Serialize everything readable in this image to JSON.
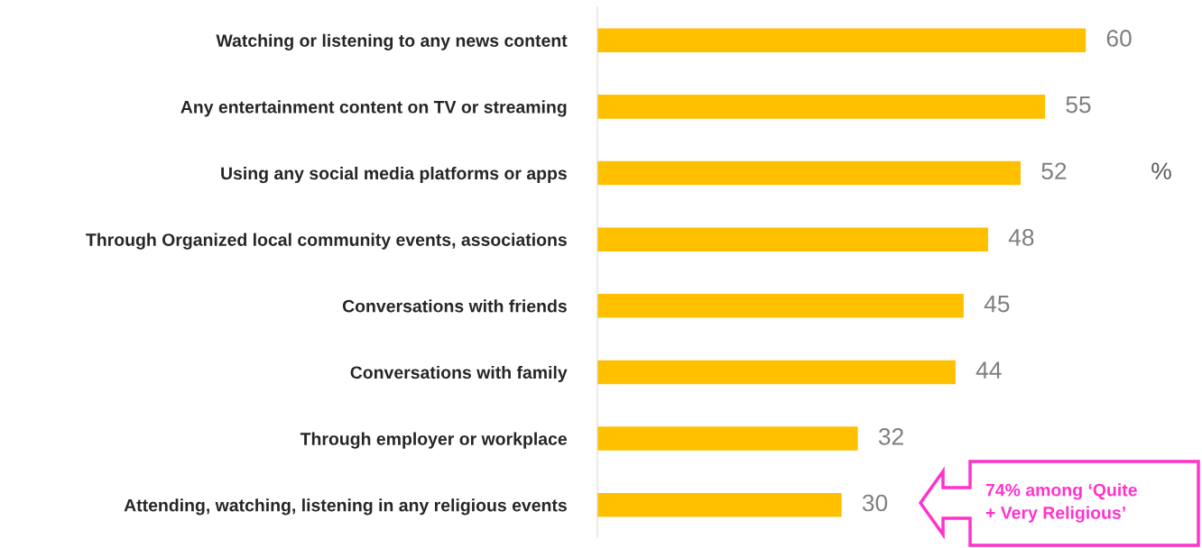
{
  "chart_data": {
    "type": "bar",
    "orientation": "horizontal",
    "categories": [
      "Watching or listening to any news content",
      "Any entertainment content on TV or streaming",
      "Using any social media platforms or apps",
      "Through Organized local community events, associations",
      "Conversations with friends",
      "Conversations with family",
      "Through employer or workplace",
      "Attending, watching, listening in any religious events"
    ],
    "values": [
      60,
      55,
      52,
      48,
      45,
      44,
      32,
      30
    ],
    "color": "#ffc000",
    "data_labels": true,
    "grid": false,
    "legend": false,
    "annotations": [
      "%",
      "74% among ‘Quite\n+ Very Religious’"
    ]
  }
}
